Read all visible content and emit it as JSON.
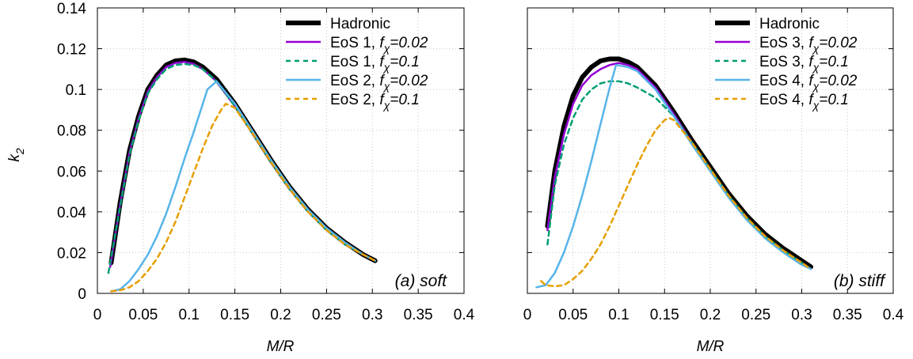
{
  "chart_data": [
    {
      "type": "line",
      "annotation": "(a) soft",
      "xlabel": "M/R",
      "ylabel": "k",
      "ylabel_sub": "2",
      "xlim": [
        0,
        0.4
      ],
      "ylim": [
        0,
        0.14
      ],
      "xticks": [
        "0",
        "0.05",
        "0.1",
        "0.15",
        "0.2",
        "0.25",
        "0.3",
        "0.35",
        "0.4"
      ],
      "yticks": [
        "0",
        "0.02",
        "0.04",
        "0.06",
        "0.08",
        "0.1",
        "0.12",
        "0.14"
      ],
      "grid": true,
      "legend_position": "top-right",
      "series": [
        {
          "name": "Hadronic",
          "legend_pre": "Hadronic",
          "legend_sub": "",
          "legend_val": "",
          "color": "#000000",
          "style": "solid",
          "width": 6,
          "x": [
            0.015,
            0.025,
            0.035,
            0.045,
            0.055,
            0.065,
            0.075,
            0.085,
            0.095,
            0.105,
            0.115,
            0.13,
            0.15,
            0.17,
            0.19,
            0.21,
            0.23,
            0.25,
            0.27,
            0.29,
            0.303
          ],
          "y": [
            0.015,
            0.045,
            0.07,
            0.087,
            0.1,
            0.107,
            0.112,
            0.114,
            0.1145,
            0.1135,
            0.111,
            0.105,
            0.093,
            0.079,
            0.065,
            0.052,
            0.041,
            0.032,
            0.025,
            0.019,
            0.016
          ]
        },
        {
          "name": "EoS 1, f_χ=0.02",
          "legend_pre": "EoS 1, f",
          "legend_sub": "χ",
          "legend_val": "=0.02",
          "color": "#9400d3",
          "style": "solid",
          "width": 2.5,
          "x": [
            0.014,
            0.025,
            0.035,
            0.045,
            0.055,
            0.065,
            0.075,
            0.085,
            0.095,
            0.105,
            0.115,
            0.13,
            0.15,
            0.17,
            0.19,
            0.21,
            0.23,
            0.25,
            0.27,
            0.29,
            0.303
          ],
          "y": [
            0.013,
            0.044,
            0.069,
            0.086,
            0.099,
            0.106,
            0.111,
            0.113,
            0.1135,
            0.1125,
            0.11,
            0.104,
            0.092,
            0.078,
            0.064,
            0.051,
            0.04,
            0.031,
            0.024,
            0.019,
            0.016
          ]
        },
        {
          "name": "EoS 1, f_χ=0.1",
          "legend_pre": "EoS 1, f",
          "legend_sub": "χ",
          "legend_val": "=0.1",
          "color": "#009e73",
          "style": "dashed",
          "width": 2.5,
          "x": [
            0.012,
            0.025,
            0.035,
            0.045,
            0.055,
            0.065,
            0.075,
            0.085,
            0.095,
            0.105,
            0.115,
            0.13,
            0.15,
            0.17,
            0.19,
            0.21,
            0.23,
            0.25,
            0.27,
            0.29,
            0.303
          ],
          "y": [
            0.01,
            0.043,
            0.068,
            0.085,
            0.098,
            0.105,
            0.11,
            0.112,
            0.1125,
            0.112,
            0.11,
            0.104,
            0.092,
            0.078,
            0.064,
            0.051,
            0.04,
            0.031,
            0.024,
            0.019,
            0.016
          ]
        },
        {
          "name": "EoS 2, f_χ=0.02",
          "legend_pre": "EoS 2, f",
          "legend_sub": "χ",
          "legend_val": "=0.02",
          "color": "#56b4e9",
          "style": "solid",
          "width": 2.5,
          "x": [
            0.015,
            0.025,
            0.035,
            0.045,
            0.055,
            0.065,
            0.075,
            0.085,
            0.095,
            0.105,
            0.115,
            0.12,
            0.13,
            0.15,
            0.17,
            0.19,
            0.21,
            0.23,
            0.25,
            0.27,
            0.29,
            0.303
          ],
          "y": [
            0.001,
            0.002,
            0.006,
            0.012,
            0.019,
            0.028,
            0.039,
            0.052,
            0.066,
            0.079,
            0.093,
            0.1,
            0.104,
            0.093,
            0.079,
            0.065,
            0.052,
            0.041,
            0.032,
            0.025,
            0.019,
            0.016
          ]
        },
        {
          "name": "EoS 2, f_χ=0.1",
          "legend_pre": "EoS 2, f",
          "legend_sub": "χ",
          "legend_val": "=0.1",
          "color": "#e69f00",
          "style": "dashed",
          "width": 2.5,
          "x": [
            0.015,
            0.025,
            0.035,
            0.045,
            0.055,
            0.065,
            0.075,
            0.085,
            0.095,
            0.105,
            0.115,
            0.125,
            0.135,
            0.14,
            0.15,
            0.17,
            0.19,
            0.21,
            0.23,
            0.25,
            0.27,
            0.29,
            0.303
          ],
          "y": [
            0.001,
            0.0015,
            0.003,
            0.006,
            0.011,
            0.017,
            0.025,
            0.035,
            0.047,
            0.059,
            0.071,
            0.082,
            0.09,
            0.093,
            0.091,
            0.078,
            0.064,
            0.051,
            0.04,
            0.031,
            0.024,
            0.019,
            0.016
          ]
        }
      ]
    },
    {
      "type": "line",
      "annotation": "(b) stiff",
      "xlabel": "M/R",
      "ylabel": "",
      "xlim": [
        0,
        0.4
      ],
      "ylim": [
        0,
        0.14
      ],
      "xticks": [
        "0",
        "0.05",
        "0.1",
        "0.15",
        "0.2",
        "0.25",
        "0.3",
        "0.35",
        "0.4"
      ],
      "grid": true,
      "legend_position": "top-right",
      "series": [
        {
          "name": "Hadronic",
          "legend_pre": "Hadronic",
          "legend_sub": "",
          "legend_val": "",
          "color": "#000000",
          "style": "solid",
          "width": 6,
          "x": [
            0.022,
            0.03,
            0.04,
            0.05,
            0.06,
            0.07,
            0.08,
            0.09,
            0.1,
            0.11,
            0.12,
            0.14,
            0.16,
            0.18,
            0.2,
            0.22,
            0.24,
            0.26,
            0.28,
            0.3,
            0.31
          ],
          "y": [
            0.033,
            0.06,
            0.082,
            0.097,
            0.106,
            0.111,
            0.114,
            0.115,
            0.115,
            0.1135,
            0.111,
            0.102,
            0.089,
            0.075,
            0.062,
            0.049,
            0.038,
            0.029,
            0.022,
            0.016,
            0.013
          ]
        },
        {
          "name": "EoS 3, f_χ=0.02",
          "legend_pre": "EoS 3, f",
          "legend_sub": "χ",
          "legend_val": "=0.02",
          "color": "#9400d3",
          "style": "solid",
          "width": 2.5,
          "x": [
            0.022,
            0.03,
            0.04,
            0.05,
            0.06,
            0.07,
            0.08,
            0.09,
            0.1,
            0.11,
            0.12,
            0.14,
            0.16,
            0.18,
            0.2,
            0.22,
            0.24,
            0.26,
            0.28,
            0.3,
            0.31
          ],
          "y": [
            0.031,
            0.057,
            0.078,
            0.093,
            0.102,
            0.107,
            0.11,
            0.112,
            0.113,
            0.112,
            0.11,
            0.101,
            0.088,
            0.074,
            0.061,
            0.048,
            0.037,
            0.028,
            0.021,
            0.015,
            0.012
          ]
        },
        {
          "name": "EoS 3, f_χ=0.1",
          "legend_pre": "EoS 3, f",
          "legend_sub": "χ",
          "legend_val": "=0.1",
          "color": "#009e73",
          "style": "dashed",
          "width": 2.5,
          "x": [
            0.022,
            0.03,
            0.04,
            0.05,
            0.06,
            0.07,
            0.08,
            0.09,
            0.1,
            0.11,
            0.12,
            0.14,
            0.16,
            0.18,
            0.2,
            0.22,
            0.24,
            0.26,
            0.28,
            0.3,
            0.31
          ],
          "y": [
            0.024,
            0.053,
            0.073,
            0.086,
            0.095,
            0.1,
            0.103,
            0.104,
            0.104,
            0.103,
            0.101,
            0.096,
            0.087,
            0.074,
            0.061,
            0.048,
            0.037,
            0.028,
            0.021,
            0.015,
            0.012
          ]
        },
        {
          "name": "EoS 4, f_χ=0.02",
          "legend_pre": "EoS 4, f",
          "legend_sub": "χ",
          "legend_val": "=0.02",
          "color": "#56b4e9",
          "style": "solid",
          "width": 2.5,
          "x": [
            0.01,
            0.02,
            0.03,
            0.04,
            0.05,
            0.06,
            0.07,
            0.08,
            0.09,
            0.097,
            0.11,
            0.12,
            0.14,
            0.16,
            0.18,
            0.2,
            0.22,
            0.24,
            0.26,
            0.28,
            0.3,
            0.31
          ],
          "y": [
            0.003,
            0.004,
            0.01,
            0.02,
            0.033,
            0.048,
            0.065,
            0.083,
            0.101,
            0.112,
            0.111,
            0.109,
            0.1,
            0.087,
            0.073,
            0.06,
            0.047,
            0.036,
            0.027,
            0.02,
            0.014,
            0.012
          ]
        },
        {
          "name": "EoS 4, f_χ=0.1",
          "legend_pre": "EoS 4, f",
          "legend_sub": "χ",
          "legend_val": "=0.1",
          "color": "#e69f00",
          "style": "dashed",
          "width": 2.5,
          "x": [
            0.015,
            0.02,
            0.03,
            0.04,
            0.05,
            0.06,
            0.07,
            0.08,
            0.09,
            0.1,
            0.11,
            0.12,
            0.13,
            0.14,
            0.15,
            0.155,
            0.16,
            0.18,
            0.2,
            0.22,
            0.24,
            0.26,
            0.28,
            0.3,
            0.31
          ],
          "y": [
            0.006,
            0.004,
            0.0035,
            0.004,
            0.007,
            0.011,
            0.017,
            0.024,
            0.033,
            0.043,
            0.053,
            0.063,
            0.072,
            0.08,
            0.085,
            0.086,
            0.085,
            0.074,
            0.061,
            0.048,
            0.037,
            0.028,
            0.021,
            0.015,
            0.012
          ]
        }
      ]
    }
  ]
}
